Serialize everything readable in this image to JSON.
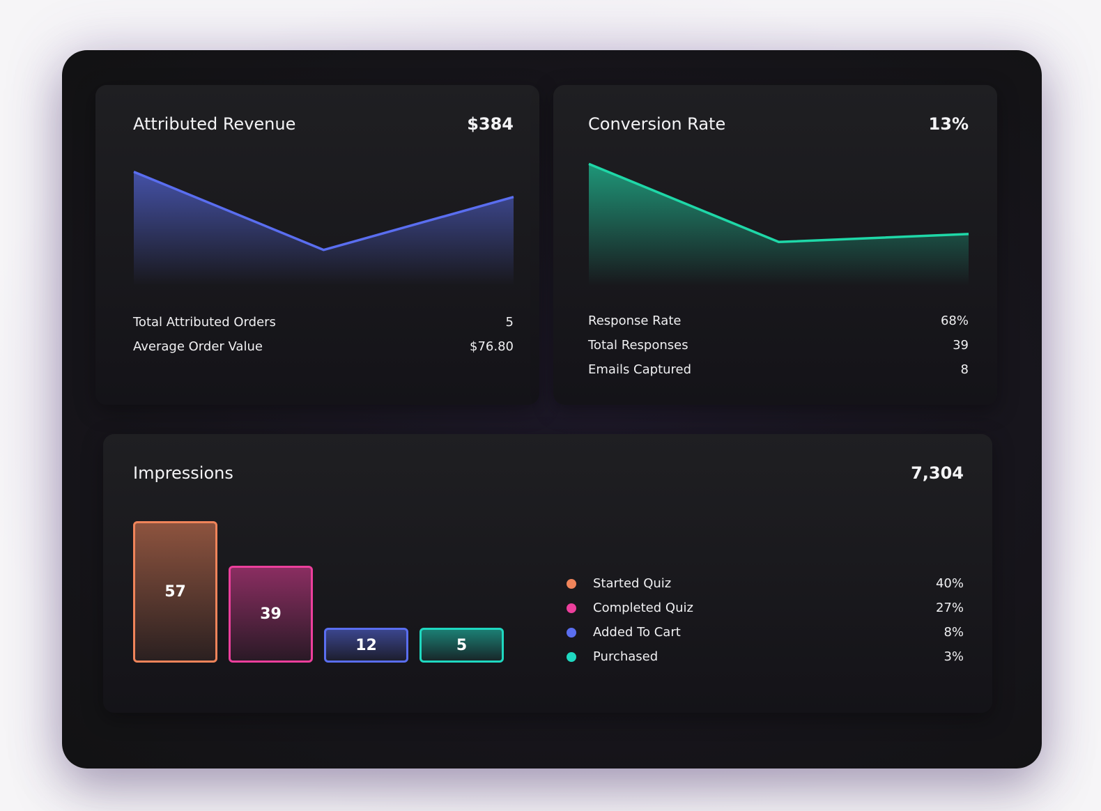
{
  "revenue": {
    "title": "Attributed Revenue",
    "value": "$384",
    "color": "#5a6ef0",
    "stats": [
      {
        "label": "Total Attributed Orders",
        "value": "5"
      },
      {
        "label": "Average Order Value",
        "value": "$76.80"
      }
    ]
  },
  "conversion": {
    "title": "Conversion Rate",
    "value": "13%",
    "color": "#1fd8a8",
    "stats": [
      {
        "label": "Response Rate",
        "value": "68%"
      },
      {
        "label": "Total Responses",
        "value": "39"
      },
      {
        "label": "Emails Captured",
        "value": "8"
      }
    ]
  },
  "impressions": {
    "title": "Impressions",
    "value": "7,304",
    "legend": [
      {
        "label": "Started Quiz",
        "value": "40%",
        "color": "#f0845a"
      },
      {
        "label": "Completed Quiz",
        "value": "27%",
        "color": "#ec3f9c"
      },
      {
        "label": "Added To Cart",
        "value": "8%",
        "color": "#5a6ef0"
      },
      {
        "label": "Purchased",
        "value": "3%",
        "color": "#1fd8c0"
      }
    ]
  },
  "chart_data": [
    {
      "type": "area",
      "title": "Attributed Revenue",
      "x": [
        1,
        2,
        3
      ],
      "values": [
        0.86,
        0.27,
        0.67
      ]
    },
    {
      "type": "area",
      "title": "Conversion Rate",
      "x": [
        1,
        2,
        3
      ],
      "values": [
        0.92,
        0.33,
        0.39
      ]
    },
    {
      "type": "bar",
      "title": "Impressions",
      "categories": [
        "Started Quiz",
        "Completed Quiz",
        "Added To Cart",
        "Purchased"
      ],
      "values": [
        57,
        39,
        12,
        5
      ],
      "colors": [
        "#f0845a",
        "#ec3f9c",
        "#5a6ef0",
        "#1fd8c0"
      ]
    }
  ]
}
